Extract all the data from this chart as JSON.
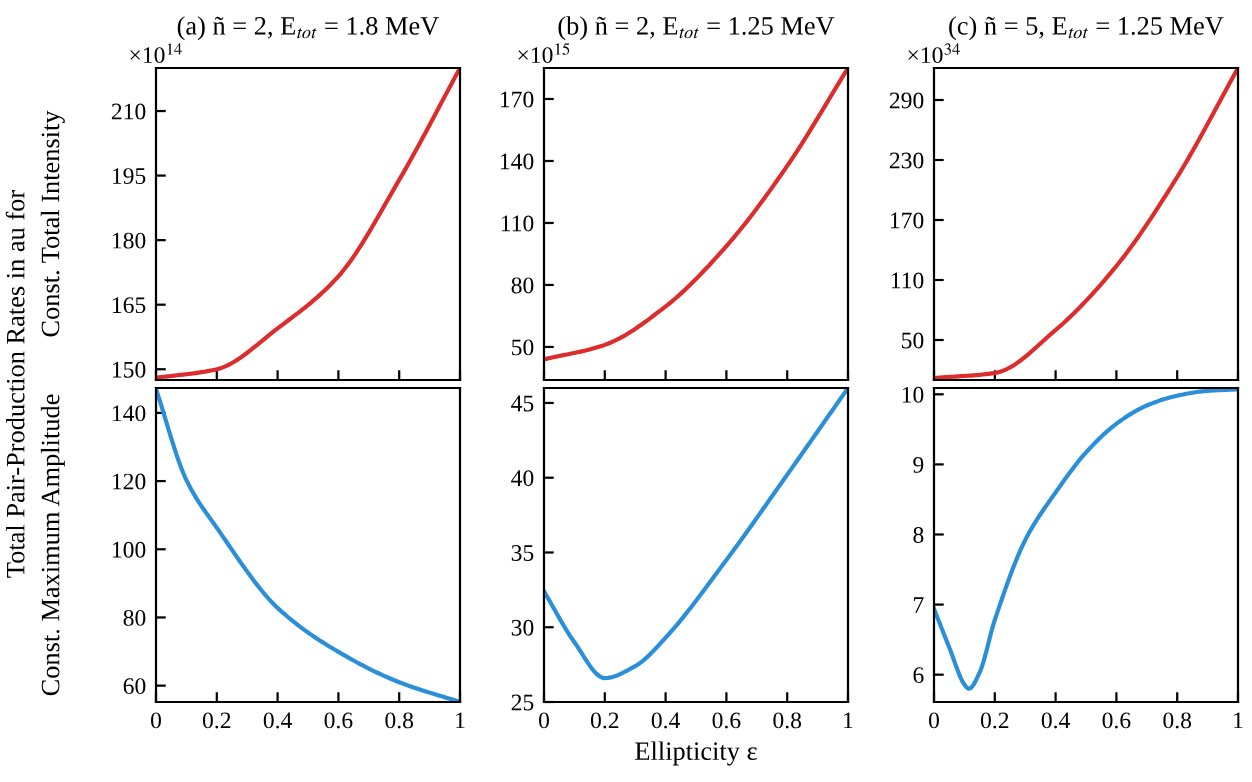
{
  "chart_data": [
    {
      "type": "line",
      "title": "(a) ñ = 2, E$_{tot}$ = 1.8 MeV",
      "ylabel": "Const. Total Intensity",
      "annotations": [
        "×10$^{14}$",
        "Total Pair-Production Rates in au for"
      ],
      "x": [
        0,
        0.2,
        0.4,
        0.6,
        0.8,
        1
      ],
      "series": [
        {
          "color": "#dd2c2c",
          "values": [
            148,
            150,
            159.5,
            171.6,
            194,
            220
          ]
        }
      ],
      "xlim": [
        0,
        1
      ],
      "xticks": [
        0,
        0.2,
        0.4,
        0.6,
        0.8,
        1
      ],
      "ylim": [
        147.5,
        220
      ],
      "yticks": [
        150,
        165,
        180,
        195,
        210
      ],
      "tick_labels": "y",
      "grid": false,
      "legend": false
    },
    {
      "type": "line",
      "title": "(b) ñ = 2, E$_{tot}$ = 1.25 MeV",
      "annotations": [
        "×10$^{15}$"
      ],
      "x": [
        0,
        0.2,
        0.4,
        0.6,
        0.8,
        1
      ],
      "series": [
        {
          "color": "#dd2c2c",
          "values": [
            44,
            51,
            69.6,
            98.8,
            137.6,
            185
          ]
        }
      ],
      "xlim": [
        0,
        1
      ],
      "xticks": [
        0,
        0.2,
        0.4,
        0.6,
        0.8,
        1
      ],
      "ylim": [
        34,
        185
      ],
      "yticks": [
        50,
        80,
        110,
        140,
        170
      ],
      "tick_labels": "y",
      "grid": false,
      "legend": false
    },
    {
      "type": "line",
      "title": "(c) ñ = 5, E$_{tot}$ = 1.25 MeV",
      "annotations": [
        "×10$^{34}$"
      ],
      "x": [
        0,
        0.2,
        0.4,
        0.6,
        0.8,
        1
      ],
      "series": [
        {
          "color": "#dd2c2c",
          "values": [
            12,
            17,
            60,
            124,
            213,
            322
          ]
        }
      ],
      "xlim": [
        0,
        1
      ],
      "xticks": [
        0,
        0.2,
        0.4,
        0.6,
        0.8,
        1
      ],
      "ylim": [
        10,
        322
      ],
      "yticks": [
        50,
        110,
        170,
        230,
        290
      ],
      "tick_labels": "y",
      "grid": false,
      "legend": false
    },
    {
      "type": "line",
      "ylabel": "Const. Maximum Amplitude",
      "x": [
        0,
        0.1,
        0.2,
        0.4,
        0.6,
        0.8,
        1
      ],
      "series": [
        {
          "color": "#2a8fd8",
          "values": [
            147,
            120.3,
            106.3,
            82.8,
            69.9,
            61,
            55.2
          ]
        }
      ],
      "xlim": [
        0,
        1
      ],
      "xticks": [
        0,
        0.2,
        0.4,
        0.6,
        0.8,
        1
      ],
      "ylim": [
        55.2,
        147.3
      ],
      "yticks": [
        60,
        80,
        100,
        120,
        140
      ],
      "grid": false,
      "legend": false
    },
    {
      "type": "line",
      "xlabel": "Ellipticity ε",
      "x": [
        0,
        0.1,
        0.2,
        0.3,
        0.4,
        0.6,
        0.8,
        1
      ],
      "series": [
        {
          "color": "#2a8fd8",
          "values": [
            32.4,
            29.0,
            26.6,
            27.4,
            29.3,
            34.5,
            40.2,
            46
          ]
        }
      ],
      "xlim": [
        0,
        1
      ],
      "xticks": [
        0,
        0.2,
        0.4,
        0.6,
        0.8,
        1
      ],
      "ylim": [
        25,
        46
      ],
      "yticks": [
        25,
        30,
        35,
        40,
        45
      ],
      "grid": false,
      "legend": false
    },
    {
      "type": "line",
      "x": [
        0,
        0.05,
        0.1,
        0.115,
        0.15,
        0.2,
        0.3,
        0.4,
        0.5,
        0.6,
        0.7,
        0.8,
        0.9,
        1
      ],
      "series": [
        {
          "color": "#2a8fd8",
          "values": [
            6.94,
            6.39,
            5.86,
            5.8,
            6.03,
            6.78,
            7.92,
            8.6,
            9.17,
            9.58,
            9.84,
            9.98,
            10.05,
            10.07
          ]
        }
      ],
      "xlim": [
        0,
        1
      ],
      "xticks": [
        0,
        0.2,
        0.4,
        0.6,
        0.8,
        1
      ],
      "ylim": [
        5.61,
        10.09
      ],
      "yticks": [
        6,
        7,
        8,
        9,
        10
      ],
      "grid": false,
      "legend": false
    }
  ]
}
